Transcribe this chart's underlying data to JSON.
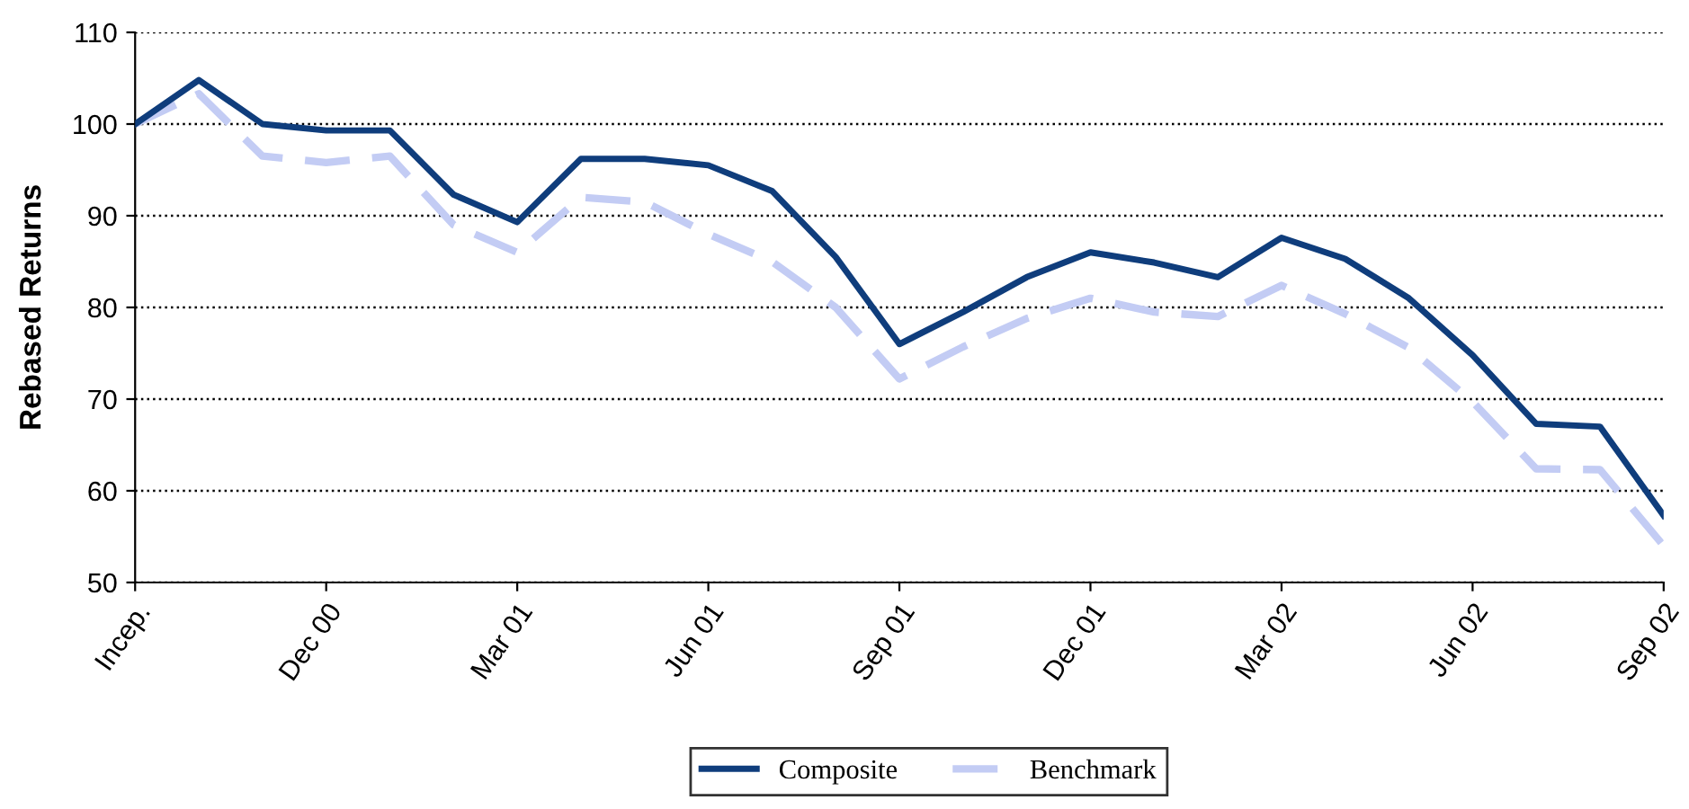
{
  "chart_data": {
    "type": "line",
    "ylabel": "Rebased Returns",
    "categories": [
      "Incep.",
      null,
      null,
      "Dec 00",
      null,
      null,
      "Mar 01",
      null,
      null,
      "Jun 01",
      null,
      null,
      "Sep 01",
      null,
      null,
      "Dec 01",
      null,
      null,
      "Mar 02",
      null,
      null,
      "Jun 02",
      null,
      null,
      "Sep 02"
    ],
    "series": [
      {
        "name": "Composite",
        "color": "#0f3d7c",
        "line_style": "solid",
        "values": [
          100,
          104.8,
          100,
          99.3,
          99.3,
          92.3,
          89.3,
          96.2,
          96.2,
          95.5,
          92.7,
          85.5,
          76,
          79.5,
          83.3,
          86,
          84.9,
          83.3,
          87.6,
          85.3,
          81,
          74.8,
          67.3,
          67,
          57.3
        ]
      },
      {
        "name": "Benchmark",
        "color": "#c3ccf4",
        "line_style": "dashed",
        "values": [
          100,
          103.3,
          96.5,
          95.8,
          96.5,
          89,
          86,
          92,
          91.5,
          88,
          85,
          80,
          72.2,
          75.7,
          78.8,
          81,
          79.5,
          79,
          82.4,
          79.3,
          75.6,
          69.7,
          62.4,
          62.3,
          54
        ]
      }
    ],
    "ylim": [
      50,
      110
    ],
    "yticks": [
      50,
      60,
      70,
      80,
      90,
      100,
      110
    ],
    "grid": "y",
    "legend": "bottom",
    "marker": "none"
  }
}
